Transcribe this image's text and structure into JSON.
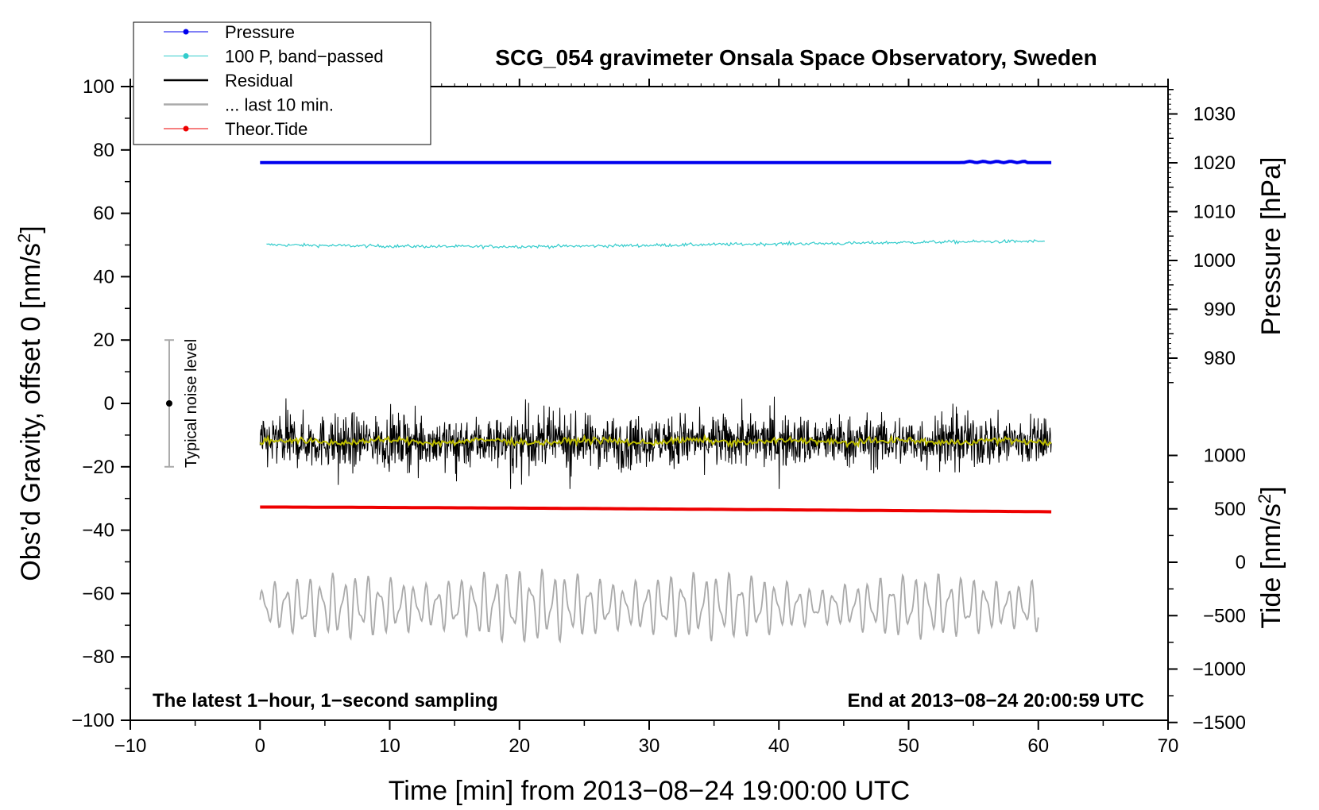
{
  "chart_data": {
    "type": "line",
    "title": "SCG_054 gravimeter Onsala Space Observatory, Sweden",
    "xlabel": "Time [min] from 2013−08−24 19:00:00 UTC",
    "ylabel_left_main": "Obs’d Gravity, offset 0 [nm/s",
    "ylabel_left_sup": "2",
    "ylabel_left_end": "]",
    "ylabel_right_pressure": "Pressure [hPa]",
    "ylabel_right_tide_main": "Tide [nm/s",
    "ylabel_right_tide_sup": "2",
    "ylabel_right_tide_end": "]",
    "xlim": [
      -10,
      70
    ],
    "ylim": [
      -100,
      100
    ],
    "x_ticks": [
      -10,
      0,
      10,
      20,
      30,
      40,
      50,
      60,
      70
    ],
    "x_tick_labels": [
      "−10",
      "0",
      "10",
      "20",
      "30",
      "40",
      "50",
      "60",
      "70"
    ],
    "y_ticks": [
      100,
      80,
      60,
      40,
      20,
      0,
      -20,
      -40,
      -60,
      -80,
      -100
    ],
    "y_tick_labels": [
      "100",
      "80",
      "60",
      "40",
      "20",
      "0",
      "−20",
      "−40",
      "−60",
      "−80",
      "−100"
    ],
    "pressure_axis": {
      "ticks": [
        1030,
        1020,
        1010,
        1000,
        990,
        980
      ],
      "tick_labels": [
        "1030",
        "1020",
        "1010",
        "1000",
        "990",
        "980"
      ],
      "range": [
        980,
        1030
      ]
    },
    "tide_axis": {
      "ticks": [
        1000,
        500,
        0,
        -500,
        -1000,
        -1500
      ],
      "tick_labels": [
        "1000",
        "500",
        "0",
        "−500",
        "−1000",
        "−1500"
      ],
      "range": [
        -1500,
        1000
      ]
    },
    "legend": [
      {
        "label": "Pressure",
        "color": "#0000ee",
        "style": "line-dot"
      },
      {
        "label": "100 P, band−passed",
        "color": "#33cccc",
        "style": "line-dot"
      },
      {
        "label": "Residual",
        "color": "#000000",
        "style": "line"
      },
      {
        "label": "... last 10 min.",
        "color": "#aaaaaa",
        "style": "line"
      },
      {
        "label": "Theor.Tide",
        "color": "#ee0000",
        "style": "line-dot"
      }
    ],
    "series": [
      {
        "name": "Pressure",
        "color": "#0000ee",
        "x_range": [
          0,
          61
        ],
        "y_start": 76,
        "y_end": 76
      },
      {
        "name": "100 P, band-passed",
        "color": "#33cccc",
        "x_range": [
          0.5,
          60.5
        ],
        "y_start": 50,
        "y_end": 51
      },
      {
        "name": "Residual",
        "color": "#000000",
        "x_range": [
          0,
          61
        ],
        "y_center": -12,
        "y_min": -27,
        "y_max": 4
      },
      {
        "name": "Residual smoothed",
        "color": "#bbbb00",
        "x_range": [
          0,
          61
        ],
        "y_center": -12
      },
      {
        "name": "Theor.Tide",
        "color": "#ee0000",
        "x_range": [
          0,
          61
        ],
        "y_start": -32.7,
        "y_end": -34.2
      },
      {
        "name": "... last 10 min.",
        "color": "#aaaaaa",
        "x_range": [
          0,
          60
        ],
        "y_center": -64,
        "y_min": -75,
        "y_max": -52
      }
    ],
    "noise_bar": {
      "label": "Typical noise level",
      "x": -7,
      "y": 0,
      "y_min": -20,
      "y_max": 20
    },
    "annotations": {
      "bottom_left": "The latest 1−hour, 1−second sampling",
      "bottom_right": "End at 2013−08−24 20:00:59 UTC"
    }
  }
}
